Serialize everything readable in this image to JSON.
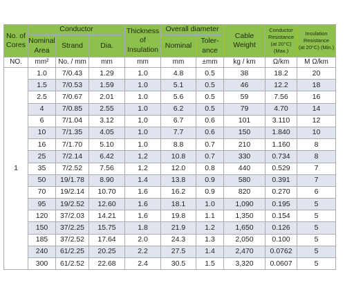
{
  "header": {
    "rows": [
      [
        "No. of\nCores",
        "Conductor",
        "Thickness\nof\nInsulation",
        "Overall diameter",
        "Cable\nWeight",
        "Conductor\nResistance\n(at 20°C) (Max.)",
        "Insulation\nResistance\n(at 20°C) (Min.)"
      ],
      [
        "Nominal\nArea",
        "Strand",
        "Dia.",
        "Nominal",
        "Toler-\nance"
      ]
    ],
    "units": [
      "NO.",
      "mm²",
      "No. / mm",
      "mm",
      "mm",
      "mm",
      "±mm",
      "kg / km",
      "Ω/km",
      "M Ω/km"
    ]
  },
  "table": {
    "cores": "1",
    "rows": [
      [
        "1.0",
        "7/0.43",
        "1.29",
        "1.0",
        "4.8",
        "0.5",
        "38",
        "18.2",
        "20"
      ],
      [
        "1.5",
        "7/0.53",
        "1.59",
        "1.0",
        "5.1",
        "0.5",
        "46",
        "12.2",
        "18"
      ],
      [
        "2.5",
        "7/0.67",
        "2.01",
        "1.0",
        "5.6",
        "0.5",
        "59",
        "7.56",
        "16"
      ],
      [
        "4",
        "7/0.85",
        "2.55",
        "1.0",
        "6.2",
        "0.5",
        "79",
        "4.70",
        "14"
      ],
      [
        "6",
        "7/1.04",
        "3.12",
        "1.0",
        "6.7",
        "0.6",
        "101",
        "3.110",
        "12"
      ],
      [
        "10",
        "7/1.35",
        "4.05",
        "1.0",
        "7.7",
        "0.6",
        "150",
        "1.840",
        "10"
      ],
      [
        "16",
        "7/1.70",
        "5.10",
        "1.0",
        "8.8",
        "0.7",
        "210",
        "1.160",
        "8"
      ],
      [
        "25",
        "7/2.14",
        "6.42",
        "1.2",
        "10.8",
        "0.7",
        "330",
        "0.734",
        "8"
      ],
      [
        "35",
        "7/2.52",
        "7.56",
        "1.2",
        "12.0",
        "0.8",
        "440",
        "0.529",
        "7"
      ],
      [
        "50",
        "19/1.78",
        "8.90",
        "1.4",
        "13.8",
        "0.9",
        "580",
        "0.391",
        "7"
      ],
      [
        "70",
        "19/2.14",
        "10.70",
        "1.6",
        "16.2",
        "0.9",
        "820",
        "0.270",
        "6"
      ],
      [
        "95",
        "19/2.52",
        "12.60",
        "1.6",
        "18.1",
        "1.0",
        "1,090",
        "0.195",
        "5"
      ],
      [
        "120",
        "37/2.03",
        "14.21",
        "1.6",
        "19.8",
        "1.1",
        "1,350",
        "0.154",
        "5"
      ],
      [
        "150",
        "37/2.25",
        "15.75",
        "1.8",
        "21.9",
        "1.2",
        "1,650",
        "0.126",
        "5"
      ],
      [
        "185",
        "37/2.52",
        "17.64",
        "2.0",
        "24.3",
        "1.3",
        "2,050",
        "0.100",
        "5"
      ],
      [
        "240",
        "61/2.25",
        "20.25",
        "2.2",
        "27.5",
        "1.4",
        "2,470",
        "0.0762",
        "5"
      ],
      [
        "300",
        "61/2.52",
        "22.68",
        "2.4",
        "30.5",
        "1.5",
        "3,320",
        "0.0607",
        "5"
      ]
    ]
  }
}
